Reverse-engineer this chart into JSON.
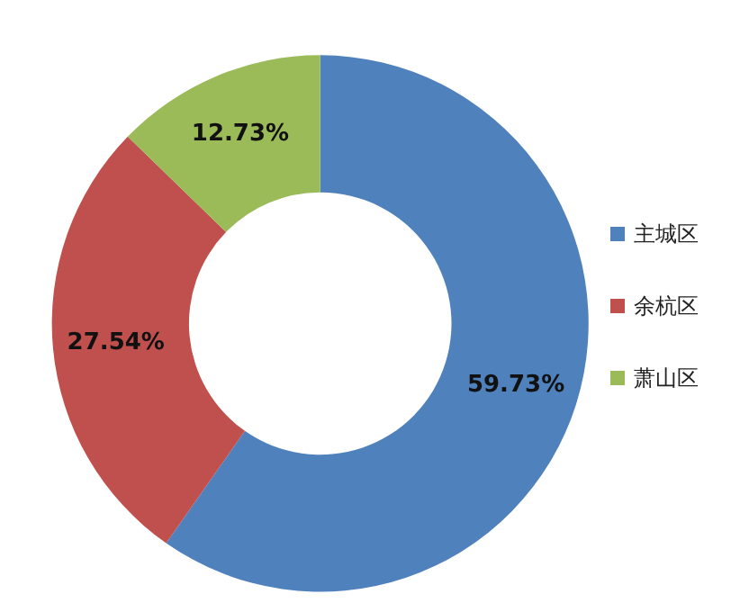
{
  "chart_data": {
    "type": "donut",
    "categories": [
      "主城区",
      "余杭区",
      "萧山区"
    ],
    "values": [
      59.73,
      27.54,
      12.73
    ],
    "colors": [
      "#4f81bd",
      "#c0504d",
      "#9bbb59"
    ],
    "value_labels": [
      "59.73%",
      "27.54%",
      "12.73%"
    ],
    "legend": "right"
  }
}
